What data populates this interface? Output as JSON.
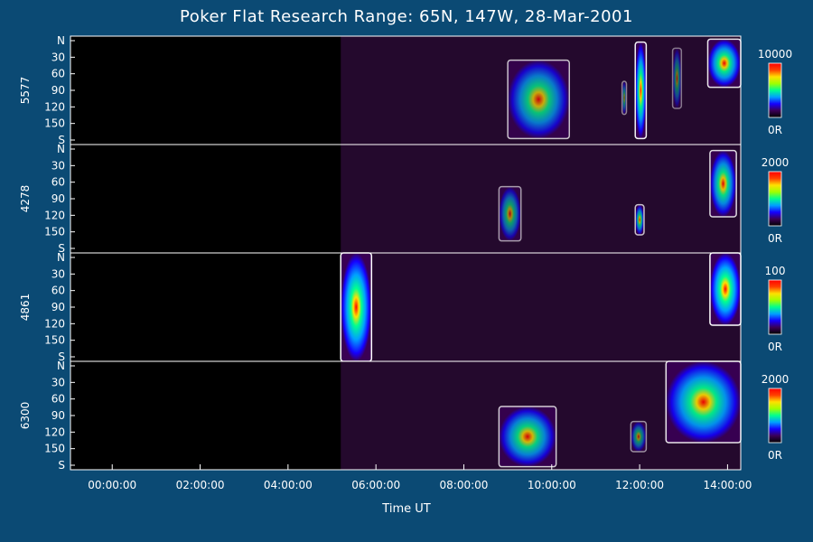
{
  "chart_data": {
    "type": "heatmap",
    "title": "Poker Flat Research Range: 65N, 147W, 28-Mar-2001",
    "xlabel": "Time UT",
    "x_ticks": [
      "00:00:00",
      "02:00:00",
      "04:00:00",
      "06:00:00",
      "08:00:00",
      "10:00:00",
      "12:00:00",
      "14:00:00"
    ],
    "xlim_hours": [
      -0.95,
      14.3
    ],
    "y_ticks": [
      "N",
      "30",
      "60",
      "90",
      "120",
      "150",
      "S"
    ],
    "ylim": [
      0,
      180
    ],
    "colorscale": [
      "#000000",
      "#3a0055",
      "#1500ff",
      "#00a0ff",
      "#00ff90",
      "#a0ff00",
      "#ffe000",
      "#ff4000",
      "#ff0000"
    ],
    "panels": [
      {
        "name": "5577",
        "cbar_max": "10000",
        "cbar_min": "0R",
        "blobs": [
          {
            "t0": 9.0,
            "t1": 10.4,
            "lat0": 40,
            "lat1": 170,
            "peak": 0.75
          },
          {
            "t0": 11.9,
            "t1": 12.15,
            "lat0": 10,
            "lat1": 170,
            "peak": 0.95
          },
          {
            "t0": 13.55,
            "t1": 14.3,
            "lat0": 5,
            "lat1": 85,
            "peak": 0.9
          },
          {
            "t0": 11.6,
            "t1": 11.7,
            "lat0": 75,
            "lat1": 130,
            "peak": 0.5
          },
          {
            "t0": 12.75,
            "t1": 12.95,
            "lat0": 20,
            "lat1": 120,
            "peak": 0.45
          }
        ]
      },
      {
        "name": "4278",
        "cbar_max": "2000",
        "cbar_min": "0R",
        "blobs": [
          {
            "t0": 8.8,
            "t1": 9.3,
            "lat0": 70,
            "lat1": 160,
            "peak": 0.6
          },
          {
            "t0": 11.9,
            "t1": 12.1,
            "lat0": 100,
            "lat1": 150,
            "peak": 0.75
          },
          {
            "t0": 13.6,
            "t1": 14.2,
            "lat0": 10,
            "lat1": 120,
            "peak": 0.85
          }
        ]
      },
      {
        "name": "4861",
        "cbar_max": "100",
        "cbar_min": "0R",
        "blobs": [
          {
            "t0": 5.2,
            "t1": 5.9,
            "lat0": 0,
            "lat1": 180,
            "peak": 1.0
          },
          {
            "t0": 13.6,
            "t1": 14.3,
            "lat0": 0,
            "lat1": 120,
            "peak": 1.0
          }
        ]
      },
      {
        "name": "6300",
        "cbar_max": "2000",
        "cbar_min": "0R",
        "blobs": [
          {
            "t0": 8.8,
            "t1": 10.1,
            "lat0": 75,
            "lat1": 175,
            "peak": 0.8
          },
          {
            "t0": 11.8,
            "t1": 12.15,
            "lat0": 100,
            "lat1": 150,
            "peak": 0.55
          },
          {
            "t0": 12.6,
            "t1": 14.3,
            "lat0": 0,
            "lat1": 135,
            "peak": 0.9
          }
        ]
      }
    ]
  }
}
